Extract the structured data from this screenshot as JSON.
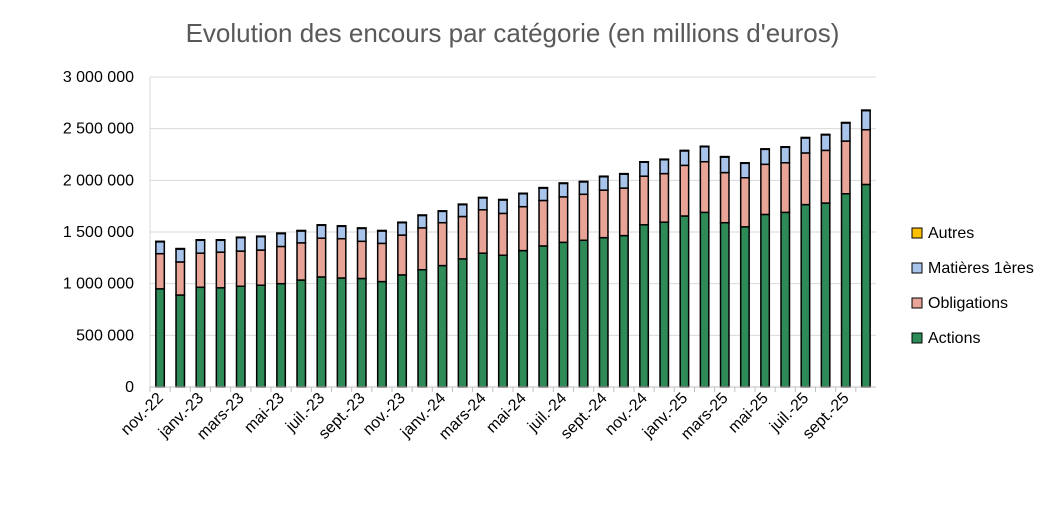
{
  "chart_data": {
    "type": "bar",
    "stacked": true,
    "title": "Evolution des encours par catégorie (en millions d'euros)",
    "xlabel": "",
    "ylabel": "",
    "ylim": [
      0,
      3000000
    ],
    "yticks": [
      0,
      500000,
      1000000,
      1500000,
      2000000,
      2500000,
      3000000
    ],
    "ytick_labels": [
      "0",
      "500 000",
      "1 000 000",
      "1 500 000",
      "2 000 000",
      "2 500 000",
      "3 000 000"
    ],
    "grid": true,
    "legend_position": "right",
    "categories": [
      "nov.-22",
      "déc.-22",
      "janv.-23",
      "févr.-23",
      "mars-23",
      "avr.-23",
      "mai-23",
      "juin-23",
      "juil.-23",
      "août-23",
      "sept.-23",
      "oct.-23",
      "nov.-23",
      "déc.-23",
      "janv.-24",
      "févr.-24",
      "mars-24",
      "avr.-24",
      "mai-24",
      "juin-24",
      "juil.-24",
      "août-24",
      "sept.-24",
      "oct.-24",
      "nov.-24",
      "déc.-24",
      "janv.-25",
      "févr.-25",
      "mars-25",
      "avr.-25",
      "mai-25",
      "juin-25",
      "juil.-25",
      "août-25",
      "sept.-25",
      "oct.-25"
    ],
    "shown_tick_labels": [
      "nov.-22",
      "janv.-23",
      "mars-23",
      "mai-23",
      "juil.-23",
      "sept.-23",
      "nov.-23",
      "janv.-24",
      "mars-24",
      "mai-24",
      "juil.-24",
      "sept.-24",
      "nov.-24",
      "janv.-25",
      "mars-25",
      "mai-25",
      "juil.-25",
      "sept.-25"
    ],
    "series": [
      {
        "name": "Actions",
        "color": "#2e8b57",
        "values": [
          950000,
          890000,
          965000,
          960000,
          975000,
          985000,
          1000000,
          1035000,
          1065000,
          1055000,
          1050000,
          1020000,
          1085000,
          1135000,
          1175000,
          1240000,
          1295000,
          1275000,
          1320000,
          1365000,
          1400000,
          1420000,
          1445000,
          1465000,
          1570000,
          1595000,
          1655000,
          1690000,
          1590000,
          1550000,
          1670000,
          1690000,
          1765000,
          1780000,
          1870000,
          1960000
        ]
      },
      {
        "name": "Obligations",
        "color": "#e8a496",
        "values": [
          340000,
          320000,
          330000,
          345000,
          340000,
          340000,
          360000,
          360000,
          375000,
          380000,
          360000,
          370000,
          385000,
          405000,
          415000,
          410000,
          420000,
          405000,
          425000,
          440000,
          440000,
          445000,
          460000,
          460000,
          470000,
          470000,
          490000,
          490000,
          485000,
          475000,
          485000,
          480000,
          500000,
          510000,
          510000,
          530000
        ]
      },
      {
        "name": "Matières 1ères",
        "color": "#a9c4eb",
        "values": [
          115000,
          125000,
          125000,
          115000,
          130000,
          130000,
          125000,
          115000,
          125000,
          120000,
          125000,
          120000,
          120000,
          120000,
          110000,
          115000,
          115000,
          130000,
          125000,
          120000,
          130000,
          120000,
          130000,
          135000,
          135000,
          135000,
          140000,
          145000,
          150000,
          140000,
          145000,
          150000,
          145000,
          150000,
          175000,
          185000
        ]
      },
      {
        "name": "Autres",
        "color": "#ffc000",
        "values": [
          5000,
          5000,
          5000,
          5000,
          5000,
          5000,
          5000,
          5000,
          5000,
          5000,
          5000,
          5000,
          5000,
          5000,
          5000,
          5000,
          5000,
          5000,
          5000,
          5000,
          5000,
          5000,
          5000,
          5000,
          5000,
          5000,
          5000,
          5000,
          5000,
          5000,
          5000,
          5000,
          5000,
          5000,
          5000,
          5000
        ]
      }
    ]
  }
}
